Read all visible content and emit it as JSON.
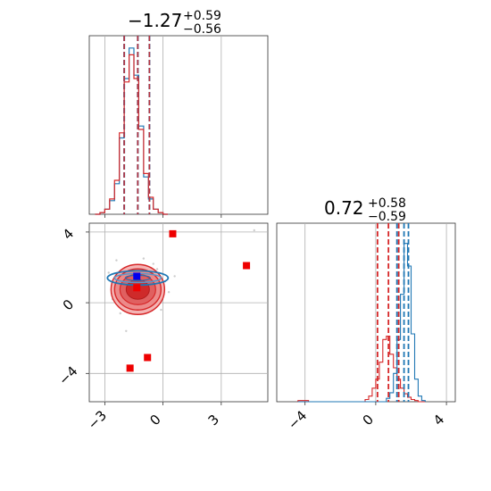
{
  "chart_data": [
    {
      "type": "histogram",
      "panel": "marginal-param-1",
      "title": {
        "value": "−1.27",
        "upper": "+0.59",
        "lower": "−0.56"
      },
      "xlim": [
        -3.8,
        5.4
      ],
      "grid": true,
      "bin_edges": [
        -3.5,
        -3.25,
        -3.0,
        -2.75,
        -2.5,
        -2.25,
        -2.0,
        -1.75,
        -1.5,
        -1.25,
        -1.0,
        -0.75,
        -0.5,
        -0.25,
        0.0,
        0.25
      ],
      "series": [
        {
          "color": "#1f77b4",
          "counts": [
            0,
            1,
            3,
            8,
            18,
            45,
            80,
            98,
            82,
            52,
            22,
            9,
            3,
            1,
            0
          ]
        },
        {
          "color": "#d62728",
          "counts": [
            0,
            1,
            3,
            9,
            20,
            48,
            78,
            94,
            80,
            50,
            24,
            10,
            3,
            1,
            0
          ]
        }
      ],
      "quantile_lines": [
        -2.0,
        -1.3,
        -0.7
      ]
    },
    {
      "type": "contour",
      "panel": "joint-param-1-param-2",
      "xlim": [
        -3.8,
        5.4
      ],
      "ylim": [
        -5.6,
        4.5
      ],
      "xticks": [
        -3,
        0,
        3
      ],
      "xticklabels": [
        "−3",
        "0",
        "3"
      ],
      "yticks": [
        -4,
        0,
        4
      ],
      "yticklabels": [
        "−4",
        "0",
        "4"
      ],
      "grid": true,
      "red_center": [
        -1.3,
        0.75
      ],
      "blue_center": [
        -1.3,
        1.4
      ],
      "red_outliers": [
        [
          0.5,
          3.9
        ],
        [
          4.3,
          2.1
        ],
        [
          -1.7,
          -3.7
        ],
        [
          -0.8,
          -3.1
        ]
      ],
      "blue_marker": [
        -1.35,
        1.5
      ],
      "red_marker": [
        -1.35,
        0.85
      ]
    },
    {
      "type": "histogram",
      "panel": "marginal-param-2",
      "title": {
        "value": "0.72",
        "upper": "+0.58",
        "lower": "−0.59"
      },
      "xlim": [
        -5.6,
        4.5
      ],
      "xticks": [
        -4,
        0,
        4
      ],
      "xticklabels": [
        "−4",
        "0",
        "4"
      ],
      "grid": true,
      "bin_edges": [
        -4.4,
        -4.1,
        -3.8,
        -0.6,
        -0.4,
        -0.2,
        0.0,
        0.2,
        0.4,
        0.6,
        0.8,
        1.0,
        1.2,
        1.4,
        1.6,
        1.8,
        2.0,
        2.2,
        2.4,
        2.6,
        2.8
      ],
      "series": [
        {
          "color": "#d62728",
          "counts": [
            1,
            1,
            0,
            2,
            5,
            12,
            20,
            35,
            55,
            58,
            42,
            30,
            20,
            12,
            7,
            4,
            2,
            1,
            0,
            0
          ]
        },
        {
          "color": "#1f77b4",
          "counts": [
            0,
            0,
            0,
            0,
            0,
            0,
            0,
            0,
            0,
            3,
            8,
            25,
            55,
            95,
            140,
            120,
            60,
            20,
            5,
            1
          ]
        }
      ],
      "quantile_lines_red": [
        0.1,
        0.72,
        1.3
      ],
      "quantile_lines_blue": [
        1.2,
        1.6,
        1.85
      ]
    }
  ]
}
